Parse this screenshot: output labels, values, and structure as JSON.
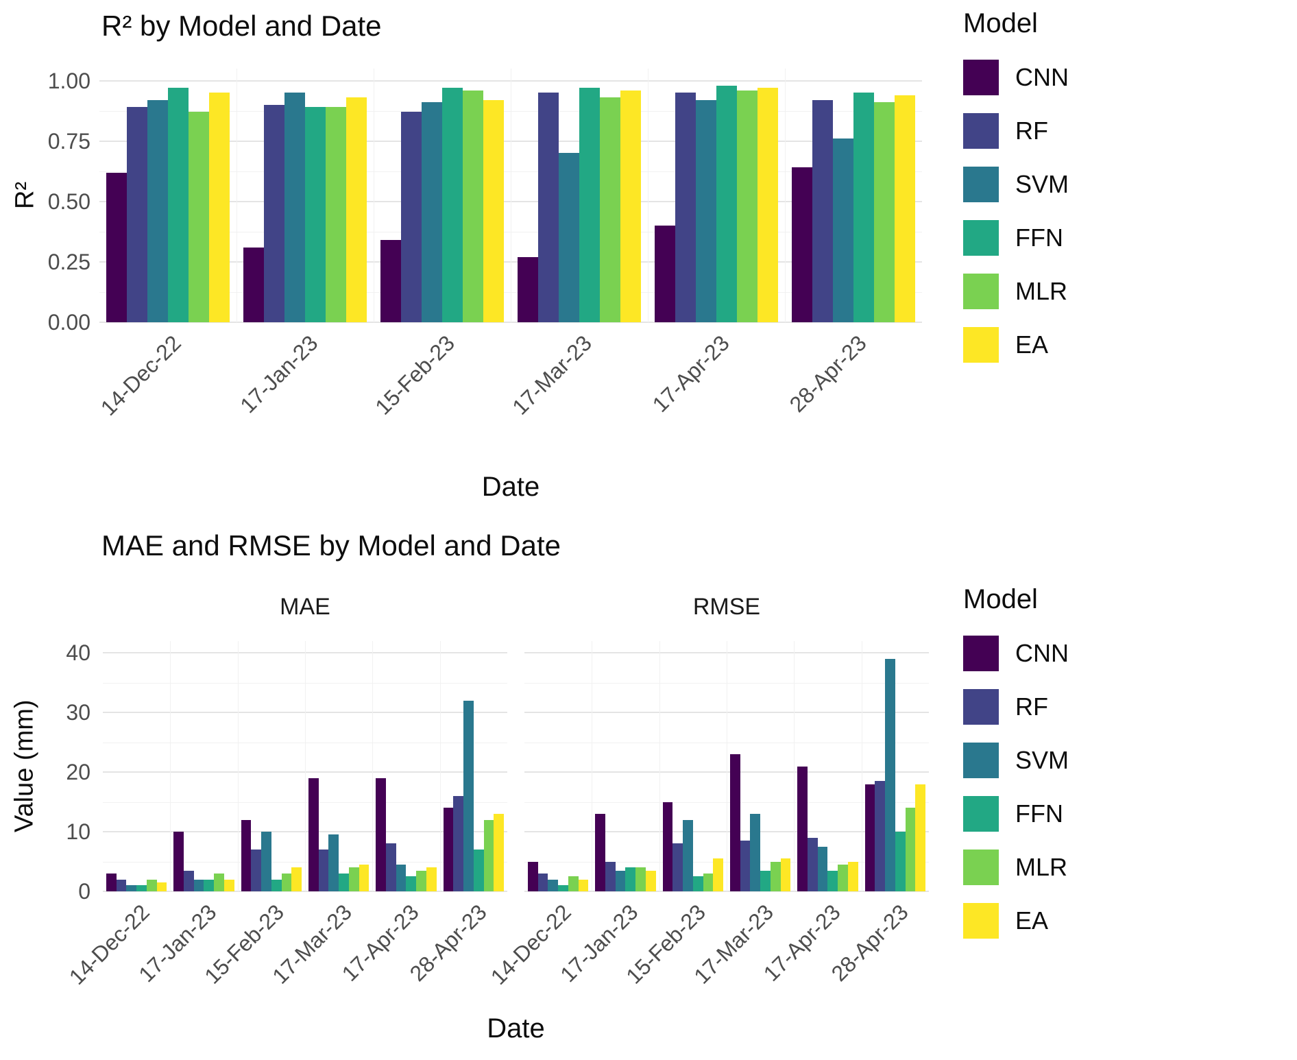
{
  "page": {
    "background": "#ffffff",
    "text_color": "#0d0d0d",
    "tick_color": "#4d4d4d",
    "grid_major": "#e4e4e4",
    "grid_minor": "#f1f1f1"
  },
  "legend": {
    "title": "Model",
    "entries": [
      {
        "label": "CNN",
        "color": "#440154"
      },
      {
        "label": "RF",
        "color": "#414487"
      },
      {
        "label": "SVM",
        "color": "#2a788e"
      },
      {
        "label": "FFN",
        "color": "#22a884"
      },
      {
        "label": "MLR",
        "color": "#7ad151"
      },
      {
        "label": "EA",
        "color": "#fde725"
      }
    ]
  },
  "chart_data": [
    {
      "id": "r2",
      "type": "bar",
      "title": "R² by Model and Date",
      "xlabel": "Date",
      "ylabel": "R²",
      "legend_position": "right",
      "grid": true,
      "categories": [
        "14-Dec-22",
        "17-Jan-23",
        "15-Feb-23",
        "17-Mar-23",
        "17-Apr-23",
        "28-Apr-23"
      ],
      "series": [
        {
          "name": "CNN",
          "values": [
            0.62,
            0.31,
            0.34,
            0.27,
            0.4,
            0.64
          ]
        },
        {
          "name": "RF",
          "values": [
            0.89,
            0.9,
            0.87,
            0.95,
            0.95,
            0.92
          ]
        },
        {
          "name": "SVM",
          "values": [
            0.92,
            0.95,
            0.91,
            0.7,
            0.92,
            0.76
          ]
        },
        {
          "name": "FFN",
          "values": [
            0.97,
            0.89,
            0.97,
            0.97,
            0.98,
            0.95
          ]
        },
        {
          "name": "MLR",
          "values": [
            0.87,
            0.89,
            0.96,
            0.93,
            0.96,
            0.91
          ]
        },
        {
          "name": "EA",
          "values": [
            0.95,
            0.93,
            0.92,
            0.96,
            0.97,
            0.94
          ]
        }
      ],
      "ylim": [
        0,
        1.0
      ],
      "ymax_display": 1.05,
      "yticks": [
        0,
        0.25,
        0.5,
        0.75,
        1.0
      ],
      "ytick_labels": [
        "0.00",
        "0.25",
        "0.50",
        "0.75",
        "1.00"
      ],
      "yminor": [
        0.125,
        0.375,
        0.625,
        0.875
      ]
    },
    {
      "id": "error",
      "type": "bar",
      "title": "MAE and RMSE by Model and Date",
      "xlabel": "Date",
      "ylabel": "Value (mm)",
      "legend_position": "right",
      "grid": true,
      "categories": [
        "14-Dec-22",
        "17-Jan-23",
        "15-Feb-23",
        "17-Mar-23",
        "17-Apr-23",
        "28-Apr-23"
      ],
      "facets": [
        {
          "name": "MAE",
          "series": [
            {
              "name": "CNN",
              "values": [
                3,
                10,
                12,
                19,
                19,
                14
              ]
            },
            {
              "name": "RF",
              "values": [
                2,
                3.5,
                7,
                7,
                8,
                16
              ]
            },
            {
              "name": "SVM",
              "values": [
                1,
                2,
                10,
                9.5,
                4.5,
                32
              ]
            },
            {
              "name": "FFN",
              "values": [
                1,
                2,
                2,
                3,
                2.5,
                7
              ]
            },
            {
              "name": "MLR",
              "values": [
                2,
                3,
                3,
                4,
                3.5,
                12
              ]
            },
            {
              "name": "EA",
              "values": [
                1.5,
                2,
                4,
                4.5,
                4,
                13
              ]
            }
          ]
        },
        {
          "name": "RMSE",
          "series": [
            {
              "name": "CNN",
              "values": [
                5,
                13,
                15,
                23,
                21,
                18
              ]
            },
            {
              "name": "RF",
              "values": [
                3,
                5,
                8,
                8.5,
                9,
                18.5
              ]
            },
            {
              "name": "SVM",
              "values": [
                2,
                3.5,
                12,
                13,
                7.5,
                39
              ]
            },
            {
              "name": "FFN",
              "values": [
                1,
                4,
                2.5,
                3.5,
                3.5,
                10
              ]
            },
            {
              "name": "MLR",
              "values": [
                2.5,
                4,
                3,
                5,
                4.5,
                14
              ]
            },
            {
              "name": "EA",
              "values": [
                2,
                3.5,
                5.5,
                5.5,
                5,
                18
              ]
            }
          ]
        }
      ],
      "ylim": [
        0,
        40
      ],
      "ymax_display": 42,
      "yticks": [
        0,
        10,
        20,
        30,
        40
      ],
      "ytick_labels": [
        "0",
        "10",
        "20",
        "30",
        "40"
      ],
      "yminor": [
        5,
        15,
        25,
        35
      ]
    }
  ]
}
